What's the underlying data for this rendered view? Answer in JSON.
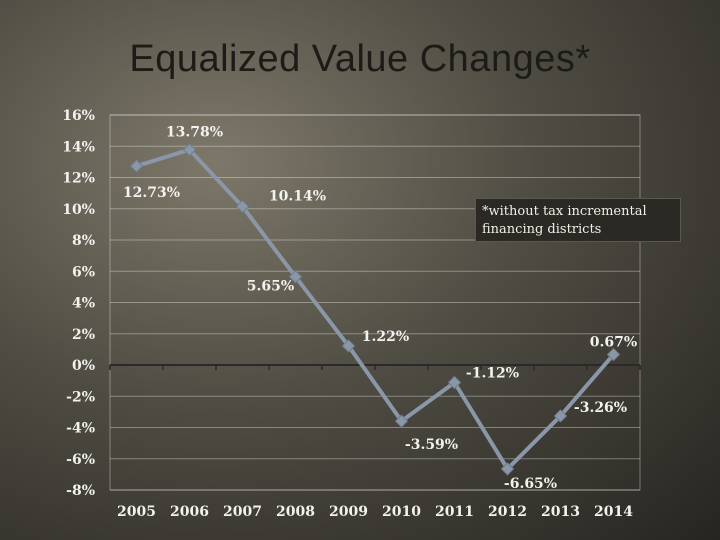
{
  "title": "Equalized Value Changes*",
  "note": "*without tax incremental financing districts",
  "colors": {
    "line": "#8a97a8",
    "marker": "#8a97a8",
    "grid": "#ffffff",
    "axis": "#2a2a2a"
  },
  "chart_data": {
    "type": "line",
    "title": "Equalized Value Changes*",
    "categories": [
      "2005",
      "2006",
      "2007",
      "2008",
      "2009",
      "2010",
      "2011",
      "2012",
      "2013",
      "2014"
    ],
    "series": [
      {
        "values": [
          12.73,
          13.78,
          10.14,
          5.65,
          1.22,
          -3.59,
          -1.12,
          -6.65,
          -3.26,
          0.67
        ],
        "labels": [
          "12.73%",
          "13.78%",
          "10.14%",
          "5.65%",
          "1.22%",
          "-3.59%",
          "-1.12%",
          "-6.65%",
          "-3.26%",
          "0.67%"
        ]
      }
    ],
    "yticks": [
      "16%",
      "14%",
      "12%",
      "10%",
      "8%",
      "6%",
      "4%",
      "2%",
      "0%",
      "-2%",
      "-4%",
      "-6%",
      "-8%"
    ],
    "ylim": [
      -8,
      16
    ],
    "grid": true,
    "xlabel": "",
    "ylabel": ""
  }
}
